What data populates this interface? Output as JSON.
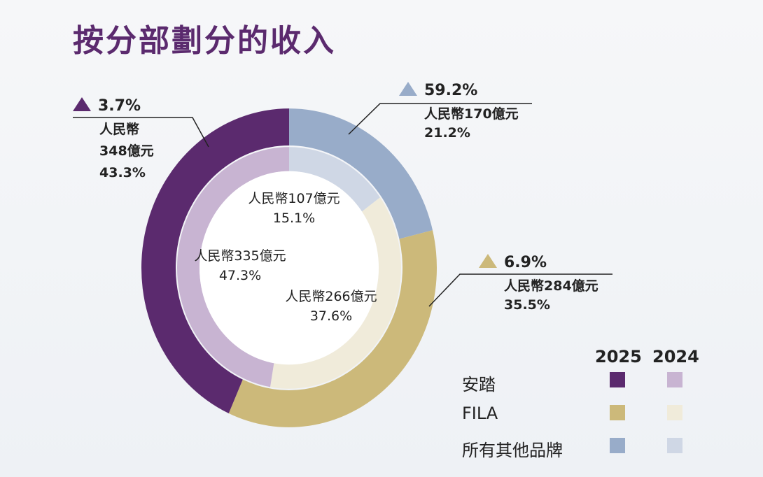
{
  "title": "按分部劃分的收入",
  "chart_data": {
    "type": "donut",
    "title": "按分部劃分的收入",
    "series": [
      {
        "name": "2025",
        "ring": "outer",
        "slices": [
          {
            "label": "所有其他品牌",
            "percent": 21.2,
            "amount": "人民幣170億元",
            "growth": "59.2%",
            "color": "#98acc9"
          },
          {
            "label": "FILA",
            "percent": 35.5,
            "amount": "人民幣284億元",
            "growth": "6.9%",
            "color": "#ccb97a"
          },
          {
            "label": "安踏",
            "percent": 43.3,
            "amount": "人民幣",
            "amount2": "348億元",
            "growth": "3.7%",
            "color": "#5b2a6e"
          }
        ]
      },
      {
        "name": "2024",
        "ring": "inner",
        "slices": [
          {
            "label": "所有其他品牌",
            "percent": 15.1,
            "amount": "人民幣107億元",
            "color": "#cfd7e5"
          },
          {
            "label": "FILA",
            "percent": 37.6,
            "amount": "人民幣266億元",
            "color": "#f0ebda"
          },
          {
            "label": "安踏",
            "percent": 47.3,
            "amount": "人民幣335億元",
            "color": "#c8b4d2"
          }
        ]
      }
    ],
    "legend": {
      "headers": [
        "2025",
        "2024"
      ],
      "items": [
        "安踏",
        "FILA",
        "所有其他品牌"
      ],
      "placement": "bottom-right"
    }
  },
  "labels": {
    "others_growth": "59.2%",
    "others_amount": "人民幣170億元",
    "others_pct": "21.2%",
    "fila_growth": "6.9%",
    "fila_amount": "人民幣284億元",
    "fila_pct": "35.5%",
    "anta_growth": "3.7%",
    "anta_amount1": "人民幣",
    "anta_amount2": "348億元",
    "anta_pct": "43.3%",
    "in_others_amount": "人民幣107億元",
    "in_others_pct": "15.1%",
    "in_anta_amount": "人民幣335億元",
    "in_anta_pct": "47.3%",
    "in_fila_amount": "人民幣266億元",
    "in_fila_pct": "37.6%"
  }
}
